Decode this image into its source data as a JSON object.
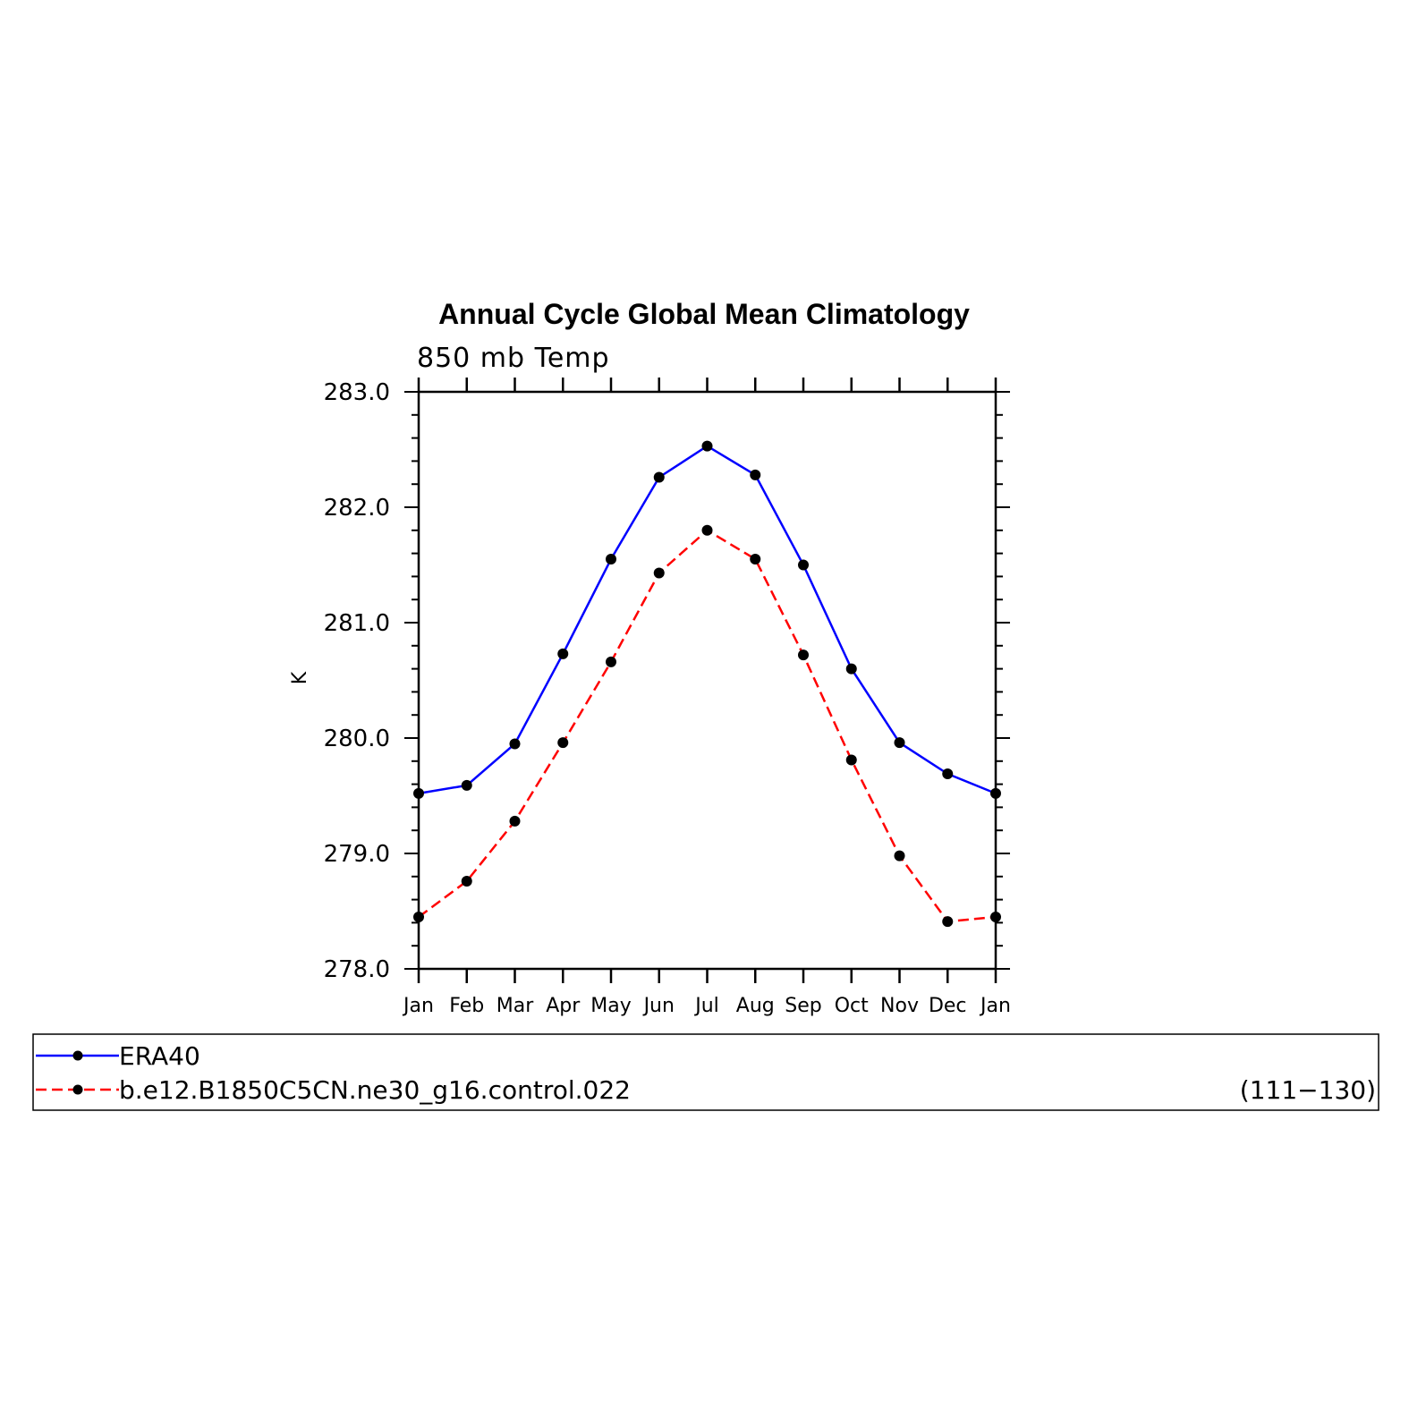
{
  "chart_data": {
    "type": "line",
    "title": "Annual Cycle Global Mean Climatology",
    "subtitle": "850 mb Temp",
    "ylabel": "K",
    "xlabel": "",
    "categories": [
      "Jan",
      "Feb",
      "Mar",
      "Apr",
      "May",
      "Jun",
      "Jul",
      "Aug",
      "Sep",
      "Oct",
      "Nov",
      "Dec",
      "Jan"
    ],
    "ylim": [
      278.0,
      283.0
    ],
    "yticks": [
      "278.0",
      "279.0",
      "280.0",
      "281.0",
      "282.0",
      "283.0"
    ],
    "grid": false,
    "series": [
      {
        "name": "ERA40",
        "color": "#0000ff",
        "dash": "solid",
        "marker_color": "#000000",
        "values": [
          279.52,
          279.59,
          279.95,
          280.73,
          281.55,
          282.26,
          282.53,
          282.28,
          281.5,
          280.6,
          279.96,
          279.69,
          279.52
        ]
      },
      {
        "name": "b.e12.B1850C5CN.ne30_g16.control.022",
        "color": "#ff0000",
        "dash": "dashed",
        "marker_color": "#000000",
        "values": [
          278.45,
          278.76,
          279.28,
          279.96,
          280.66,
          281.43,
          281.8,
          281.55,
          280.72,
          279.81,
          278.98,
          278.41,
          278.45
        ]
      }
    ],
    "legend": {
      "placement": "bottom",
      "right_note": "(111−130)"
    }
  }
}
